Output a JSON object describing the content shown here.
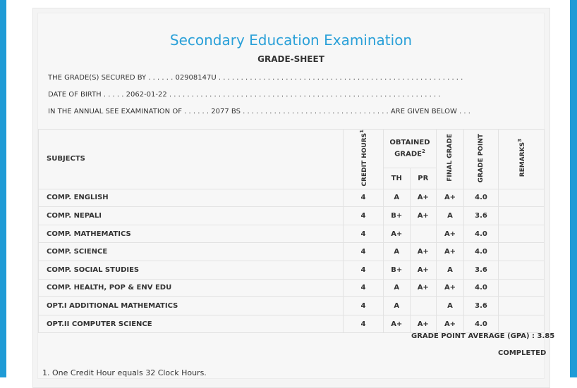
{
  "heading": {
    "title": "Secondary Education Examination",
    "subtitle": "GRADE-SHEET"
  },
  "details": {
    "symbol_line": "THE GRADE(S) SECURED BY . . . . . . 02908147U . . . . . . . . . . . . . . . . . . . . . . . . . . . . . . . . . . . . . . . . . . . . . . . . . . . . . . .",
    "dob_line": "DATE OF BIRTH . . . . . 2062-01-22 . . . . . . . . . . . . . . . . . . . . . . . . . . . . . . . . . . . . . . . . . . . . . . . . . . . . . . . . . . . . .",
    "exam_line": "IN THE ANNUAL SEE EXAMINATION OF . . . . . . 2077 BS . . . . . . . . . . . . . . . . . . . . . . . . . . . . . . . . . ARE GIVEN BELOW . . ."
  },
  "table": {
    "headers": {
      "subjects": "SUBJECTS",
      "credit_hours": "CREDIT HOURS",
      "credit_sup": "1",
      "obtained_grade": "OBTAINED GRADE",
      "obtained_sup": "2",
      "th": "TH",
      "pr": "PR",
      "final_grade": "FINAL GRADE",
      "grade_point": "GRADE POINT",
      "remarks": "REMARKS",
      "remarks_sup": "3"
    },
    "rows": [
      {
        "subject": "COMP. ENGLISH",
        "credit": "4",
        "th": "A",
        "pr": "A+",
        "final": "A+",
        "gp": "4.0",
        "remarks": ""
      },
      {
        "subject": "COMP. NEPALI",
        "credit": "4",
        "th": "B+",
        "pr": "A+",
        "final": "A",
        "gp": "3.6",
        "remarks": ""
      },
      {
        "subject": "COMP. MATHEMATICS",
        "credit": "4",
        "th": "A+",
        "pr": "",
        "final": "A+",
        "gp": "4.0",
        "remarks": ""
      },
      {
        "subject": "COMP. SCIENCE",
        "credit": "4",
        "th": "A",
        "pr": "A+",
        "final": "A+",
        "gp": "4.0",
        "remarks": ""
      },
      {
        "subject": "COMP. SOCIAL STUDIES",
        "credit": "4",
        "th": "B+",
        "pr": "A+",
        "final": "A",
        "gp": "3.6",
        "remarks": ""
      },
      {
        "subject": "COMP. HEALTH, POP & ENV EDU",
        "credit": "4",
        "th": "A",
        "pr": "A+",
        "final": "A+",
        "gp": "4.0",
        "remarks": ""
      },
      {
        "subject": "OPT.I ADDITIONAL MATHEMATICS",
        "credit": "4",
        "th": "A",
        "pr": "",
        "final": "A",
        "gp": "3.6",
        "remarks": ""
      },
      {
        "subject": "OPT.II COMPUTER SCIENCE",
        "credit": "4",
        "th": "A+",
        "pr": "A+",
        "final": "A+",
        "gp": "4.0",
        "remarks": ""
      }
    ]
  },
  "summary": {
    "gpa": "GRADE POINT AVERAGE (GPA) : 3.85",
    "status": "COMPLETED"
  },
  "footnote": "1. One Credit Hour equals 32 Clock Hours.",
  "colors": {
    "accent": "#2aa0d8",
    "frame": "#1f9bd6"
  }
}
